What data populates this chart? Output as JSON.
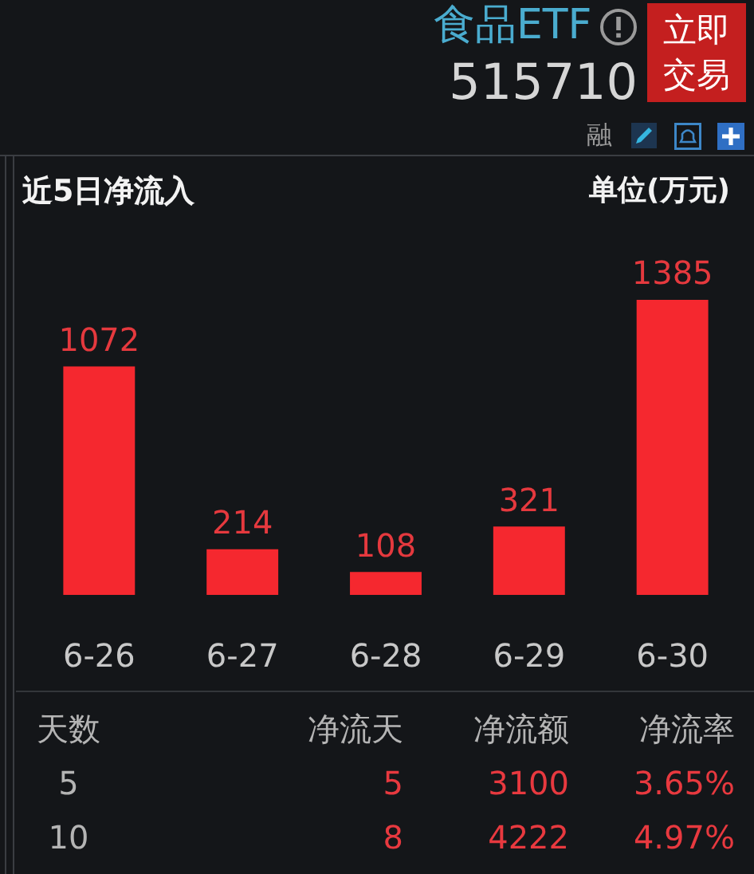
{
  "chart_data": {
    "type": "bar",
    "title": "近5日净流入",
    "ylabel": "单位(万元)",
    "categories": [
      "6-26",
      "6-27",
      "6-28",
      "6-29",
      "6-30"
    ],
    "values": [
      1072,
      214,
      108,
      321,
      1385
    ],
    "color": "#f5282f",
    "data_labels": true,
    "annotations": [
      "食品ETF",
      "515710",
      "立即交易",
      "融",
      "天数",
      "净流天",
      "净流额",
      "净流率",
      "5",
      "5",
      "3100",
      "3.65%",
      "10",
      "8",
      "4222",
      "4.97%"
    ]
  }
}
